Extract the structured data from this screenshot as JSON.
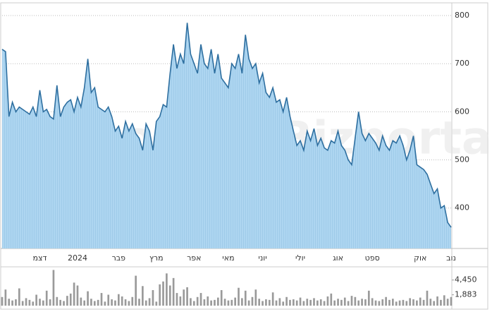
{
  "chart_data": [
    {
      "type": "area",
      "watermark": "Bizportal",
      "categories": [
        null,
        null,
        null,
        null,
        null,
        null,
        null,
        null,
        null,
        null,
        null,
        "דצמ",
        null,
        null,
        null,
        null,
        null,
        null,
        null,
        null,
        null,
        null,
        "2024",
        null,
        null,
        null,
        null,
        null,
        null,
        null,
        null,
        null,
        null,
        null,
        "פבר",
        null,
        null,
        null,
        null,
        null,
        null,
        null,
        null,
        null,
        null,
        "מרץ",
        null,
        null,
        null,
        null,
        null,
        null,
        null,
        null,
        null,
        null,
        "אפר",
        null,
        null,
        null,
        null,
        null,
        null,
        null,
        null,
        null,
        "מאי",
        null,
        null,
        null,
        null,
        null,
        null,
        null,
        null,
        null,
        "יוני",
        null,
        null,
        null,
        null,
        null,
        null,
        null,
        null,
        null,
        null,
        "יולי",
        null,
        null,
        null,
        null,
        null,
        null,
        null,
        null,
        null,
        null,
        "אוג",
        null,
        null,
        null,
        null,
        null,
        null,
        null,
        null,
        null,
        "ספט",
        null,
        null,
        null,
        null,
        null,
        null,
        null,
        null,
        null,
        null,
        null,
        null,
        null,
        "אוק",
        null,
        null,
        null,
        null,
        null,
        null,
        null,
        null,
        "נוב"
      ],
      "series": [
        {
          "color": "#2e6fa0",
          "fill": "#a9d3ef",
          "values": [
            730,
            725,
            590,
            620,
            600,
            610,
            605,
            600,
            595,
            610,
            590,
            645,
            600,
            605,
            590,
            585,
            655,
            590,
            610,
            620,
            625,
            600,
            630,
            610,
            650,
            710,
            640,
            650,
            610,
            605,
            600,
            610,
            590,
            560,
            570,
            545,
            580,
            560,
            575,
            555,
            545,
            520,
            575,
            560,
            520,
            580,
            590,
            615,
            610,
            680,
            740,
            690,
            720,
            700,
            785,
            720,
            700,
            680,
            740,
            700,
            690,
            730,
            680,
            720,
            670,
            660,
            650,
            700,
            690,
            720,
            680,
            760,
            710,
            690,
            700,
            660,
            680,
            640,
            630,
            650,
            620,
            625,
            600,
            630,
            590,
            560,
            530,
            540,
            520,
            560,
            540,
            565,
            530,
            545,
            525,
            520,
            540,
            535,
            560,
            530,
            520,
            500,
            490,
            545,
            600,
            555,
            540,
            555,
            545,
            535,
            520,
            550,
            530,
            520,
            540,
            535,
            550,
            530,
            500,
            520,
            550,
            490,
            485,
            480,
            470,
            450,
            430,
            440,
            400,
            405,
            370,
            360
          ]
        }
      ],
      "ylim": [
        316,
        825
      ],
      "yticks": [
        400,
        500,
        600,
        700,
        800
      ],
      "grid": true
    },
    {
      "type": "bar",
      "series": [
        {
          "color": "#9a9a9a",
          "values": [
            1500,
            2800,
            1200,
            900,
            1100,
            3000,
            800,
            1300,
            1000,
            700,
            1900,
            1200,
            900,
            2600,
            1100,
            6200,
            1500,
            1000,
            800,
            1700,
            2100,
            4000,
            3500,
            1400,
            900,
            2500,
            1200,
            800,
            1000,
            2200,
            700,
            1900,
            1100,
            900,
            2000,
            1600,
            1100,
            800,
            1500,
            5200,
            1200,
            3400,
            900,
            1300,
            2700,
            700,
            3700,
            4200,
            5600,
            3500,
            4800,
            2200,
            1600,
            2800,
            3200,
            1300,
            800,
            1500,
            2200,
            1100,
            1600,
            900,
            1000,
            1400,
            2700,
            1200,
            900,
            1000,
            1400,
            3100,
            1300,
            2600,
            900,
            1500,
            2800,
            1200,
            800,
            1100,
            1000,
            2300,
            900,
            1300,
            700,
            1500,
            1000,
            1100,
            900,
            1400,
            800,
            1200,
            1000,
            1300,
            900,
            1100,
            800,
            1600,
            2100,
            900,
            1200,
            1000,
            1400,
            800,
            1700,
            1500,
            900,
            1200,
            1100,
            2600,
            1300,
            900,
            800,
            1100,
            1500,
            1000,
            1200,
            700,
            900,
            1000,
            800,
            1300,
            1100,
            900,
            1400,
            1000,
            2600,
            1200,
            800,
            1600,
            1000,
            1800,
            1200,
            1500
          ]
        }
      ],
      "ylim": [
        0,
        6500
      ],
      "yticks": [
        {
          "value": 4450,
          "label": "4,450"
        },
        {
          "value": 1883,
          "label": "1,883"
        }
      ],
      "grid": false
    }
  ]
}
